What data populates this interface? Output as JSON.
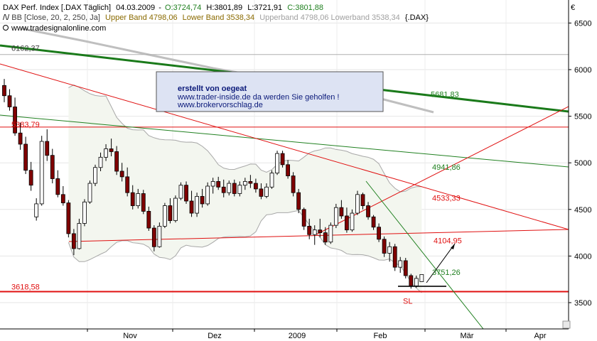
{
  "header": {
    "line1_prefix": "DAX Perf. Index [.DAX  Täglich]",
    "line1_date": "04.03.2009",
    "line1_o": "O:3724,74",
    "line1_h": "H:3801,89",
    "line1_l": "L:3721,91",
    "line1_c": "C:3801,88",
    "line2_bb": "BB [Close, 20, 2, 250, Ja]",
    "line2_upper": "Upper Band 4798,06",
    "line2_lower": "Lower Band 3538,34",
    "line2_faded": "Upperband 4798,06 Lowerband 3538,34",
    "line2_ticker": "{.DAX}",
    "watermark": "www.tradesignalonline.com",
    "currency": "€"
  },
  "annotation_box": {
    "line1": "erstellt von oegeat",
    "line2": "www.trader-inside.de da werden Sie geholfen !",
    "line3": "www.brokervorschlag.de"
  },
  "colors": {
    "up_candle": "#ffffff",
    "down_candle": "#800000",
    "red_line": "#e01010",
    "green_line": "#208020",
    "dark_green_line": "#1a7a1a",
    "band_fill": "#f3f6ef",
    "band_line": "#a8a8a8",
    "box_fill": "#dde3f3"
  },
  "chart_data": {
    "type": "candlestick",
    "ylim": [
      3300,
      6800
    ],
    "y_ticks": [
      3500,
      4000,
      4500,
      5000,
      5500,
      6000,
      6500
    ],
    "x_tick_labels": [
      "Nov",
      "Dez",
      "2009",
      "Feb",
      "Mär",
      "Apr"
    ],
    "level_labels": [
      {
        "text": "6162,37",
        "value": 6162.37,
        "color": "#404040"
      },
      {
        "text": "5383,79",
        "value": 5383.79,
        "color": "#e01010"
      },
      {
        "text": "5681,83",
        "value": 5681.83,
        "color": "#208020"
      },
      {
        "text": "4941,86",
        "value": 4941.86,
        "color": "#208020"
      },
      {
        "text": "4533,33",
        "value": 4533.33,
        "color": "#e01010"
      },
      {
        "text": "4104,95",
        "value": 4104.95,
        "color": "#e01010"
      },
      {
        "text": "3751,26",
        "value": 3751.26,
        "color": "#208020"
      },
      {
        "text": "3618,58",
        "value": 3618.58,
        "color": "#e01010"
      },
      {
        "text": "SL",
        "value": 3580,
        "color": "#e01010"
      }
    ],
    "candles": [
      {
        "x": 0,
        "o": 5830,
        "h": 5900,
        "l": 5650,
        "c": 5720
      },
      {
        "x": 1,
        "o": 5720,
        "h": 5790,
        "l": 5560,
        "c": 5600
      },
      {
        "x": 2,
        "o": 5600,
        "h": 5700,
        "l": 5290,
        "c": 5320
      },
      {
        "x": 3,
        "o": 5320,
        "h": 5430,
        "l": 5140,
        "c": 5200
      },
      {
        "x": 4,
        "o": 5200,
        "h": 5280,
        "l": 4880,
        "c": 4920
      },
      {
        "x": 5,
        "o": 4920,
        "h": 5010,
        "l": 4700,
        "c": 4760
      },
      {
        "x": 6,
        "o": 4420,
        "h": 4620,
        "l": 4380,
        "c": 4560
      },
      {
        "x": 7,
        "o": 4560,
        "h": 5290,
        "l": 4540,
        "c": 5230
      },
      {
        "x": 8,
        "o": 5230,
        "h": 5360,
        "l": 5020,
        "c": 5080
      },
      {
        "x": 9,
        "o": 5080,
        "h": 5150,
        "l": 4780,
        "c": 4830
      },
      {
        "x": 10,
        "o": 4830,
        "h": 4920,
        "l": 4630,
        "c": 4660
      },
      {
        "x": 11,
        "o": 4660,
        "h": 4750,
        "l": 4540,
        "c": 4570
      },
      {
        "x": 12,
        "o": 4570,
        "h": 4600,
        "l": 4200,
        "c": 4240
      },
      {
        "x": 13,
        "o": 4240,
        "h": 4290,
        "l": 4010,
        "c": 4080
      },
      {
        "x": 14,
        "o": 4080,
        "h": 4400,
        "l": 4070,
        "c": 4350
      },
      {
        "x": 15,
        "o": 4350,
        "h": 4610,
        "l": 4320,
        "c": 4580
      },
      {
        "x": 16,
        "o": 4580,
        "h": 4810,
        "l": 4560,
        "c": 4780
      },
      {
        "x": 17,
        "o": 4780,
        "h": 4980,
        "l": 4750,
        "c": 4950
      },
      {
        "x": 18,
        "o": 4950,
        "h": 5110,
        "l": 4910,
        "c": 5060
      },
      {
        "x": 19,
        "o": 5060,
        "h": 5200,
        "l": 5020,
        "c": 5150
      },
      {
        "x": 20,
        "o": 5150,
        "h": 5260,
        "l": 5070,
        "c": 5120
      },
      {
        "x": 21,
        "o": 5120,
        "h": 5180,
        "l": 4870,
        "c": 4910
      },
      {
        "x": 22,
        "o": 4910,
        "h": 5000,
        "l": 4800,
        "c": 4850
      },
      {
        "x": 23,
        "o": 4850,
        "h": 4950,
        "l": 4640,
        "c": 4680
      },
      {
        "x": 24,
        "o": 4680,
        "h": 4760,
        "l": 4500,
        "c": 4540
      },
      {
        "x": 25,
        "o": 4540,
        "h": 4720,
        "l": 4510,
        "c": 4670
      },
      {
        "x": 26,
        "o": 4670,
        "h": 4710,
        "l": 4450,
        "c": 4480
      },
      {
        "x": 27,
        "o": 4480,
        "h": 4530,
        "l": 4270,
        "c": 4300
      },
      {
        "x": 28,
        "o": 4300,
        "h": 4330,
        "l": 4050,
        "c": 4100
      },
      {
        "x": 29,
        "o": 4100,
        "h": 4360,
        "l": 4090,
        "c": 4320
      },
      {
        "x": 30,
        "o": 4320,
        "h": 4570,
        "l": 4300,
        "c": 4540
      },
      {
        "x": 31,
        "o": 4540,
        "h": 4620,
        "l": 4350,
        "c": 4380
      },
      {
        "x": 32,
        "o": 4380,
        "h": 4650,
        "l": 4360,
        "c": 4620
      },
      {
        "x": 33,
        "o": 4620,
        "h": 4790,
        "l": 4600,
        "c": 4760
      },
      {
        "x": 34,
        "o": 4760,
        "h": 4800,
        "l": 4560,
        "c": 4590
      },
      {
        "x": 35,
        "o": 4590,
        "h": 4700,
        "l": 4420,
        "c": 4460
      },
      {
        "x": 36,
        "o": 4460,
        "h": 4680,
        "l": 4420,
        "c": 4640
      },
      {
        "x": 37,
        "o": 4640,
        "h": 4720,
        "l": 4520,
        "c": 4560
      },
      {
        "x": 38,
        "o": 4560,
        "h": 4790,
        "l": 4540,
        "c": 4750
      },
      {
        "x": 39,
        "o": 4750,
        "h": 4840,
        "l": 4670,
        "c": 4800
      },
      {
        "x": 40,
        "o": 4800,
        "h": 4850,
        "l": 4710,
        "c": 4740
      },
      {
        "x": 41,
        "o": 4740,
        "h": 4820,
        "l": 4630,
        "c": 4680
      },
      {
        "x": 42,
        "o": 4680,
        "h": 4810,
        "l": 4650,
        "c": 4780
      },
      {
        "x": 43,
        "o": 4780,
        "h": 4820,
        "l": 4640,
        "c": 4670
      },
      {
        "x": 44,
        "o": 4670,
        "h": 4800,
        "l": 4640,
        "c": 4760
      },
      {
        "x": 45,
        "o": 4760,
        "h": 4840,
        "l": 4710,
        "c": 4800
      },
      {
        "x": 46,
        "o": 4800,
        "h": 4870,
        "l": 4730,
        "c": 4780
      },
      {
        "x": 47,
        "o": 4780,
        "h": 4830,
        "l": 4680,
        "c": 4720
      },
      {
        "x": 48,
        "o": 4720,
        "h": 4780,
        "l": 4610,
        "c": 4640
      },
      {
        "x": 49,
        "o": 4640,
        "h": 4780,
        "l": 4620,
        "c": 4740
      },
      {
        "x": 50,
        "o": 4740,
        "h": 4920,
        "l": 4720,
        "c": 4890
      },
      {
        "x": 51,
        "o": 4890,
        "h": 5130,
        "l": 4870,
        "c": 5100
      },
      {
        "x": 52,
        "o": 5100,
        "h": 5130,
        "l": 4950,
        "c": 4980
      },
      {
        "x": 53,
        "o": 4980,
        "h": 5030,
        "l": 4830,
        "c": 4860
      },
      {
        "x": 54,
        "o": 4860,
        "h": 4900,
        "l": 4640,
        "c": 4680
      },
      {
        "x": 55,
        "o": 4680,
        "h": 4720,
        "l": 4460,
        "c": 4500
      },
      {
        "x": 56,
        "o": 4500,
        "h": 4520,
        "l": 4280,
        "c": 4320
      },
      {
        "x": 57,
        "o": 4320,
        "h": 4400,
        "l": 4180,
        "c": 4230
      },
      {
        "x": 58,
        "o": 4230,
        "h": 4330,
        "l": 4120,
        "c": 4280
      },
      {
        "x": 59,
        "o": 4280,
        "h": 4400,
        "l": 4200,
        "c": 4250
      },
      {
        "x": 60,
        "o": 4250,
        "h": 4310,
        "l": 4120,
        "c": 4150
      },
      {
        "x": 61,
        "o": 4150,
        "h": 4360,
        "l": 4130,
        "c": 4330
      },
      {
        "x": 62,
        "o": 4330,
        "h": 4560,
        "l": 4300,
        "c": 4520
      },
      {
        "x": 63,
        "o": 4520,
        "h": 4600,
        "l": 4400,
        "c": 4430
      },
      {
        "x": 64,
        "o": 4430,
        "h": 4520,
        "l": 4250,
        "c": 4280
      },
      {
        "x": 65,
        "o": 4280,
        "h": 4500,
        "l": 4260,
        "c": 4460
      },
      {
        "x": 66,
        "o": 4460,
        "h": 4700,
        "l": 4440,
        "c": 4660
      },
      {
        "x": 67,
        "o": 4660,
        "h": 4680,
        "l": 4500,
        "c": 4540
      },
      {
        "x": 68,
        "o": 4540,
        "h": 4580,
        "l": 4390,
        "c": 4420
      },
      {
        "x": 69,
        "o": 4420,
        "h": 4440,
        "l": 4280,
        "c": 4310
      },
      {
        "x": 70,
        "o": 4310,
        "h": 4350,
        "l": 4150,
        "c": 4180
      },
      {
        "x": 71,
        "o": 4180,
        "h": 4210,
        "l": 3990,
        "c": 4030
      },
      {
        "x": 72,
        "o": 4030,
        "h": 4150,
        "l": 3940,
        "c": 4100
      },
      {
        "x": 73,
        "o": 4100,
        "h": 4130,
        "l": 3840,
        "c": 3880
      },
      {
        "x": 74,
        "o": 3880,
        "h": 3990,
        "l": 3820,
        "c": 3950
      },
      {
        "x": 75,
        "o": 3950,
        "h": 3980,
        "l": 3760,
        "c": 3790
      },
      {
        "x": 76,
        "o": 3790,
        "h": 3810,
        "l": 3650,
        "c": 3680
      },
      {
        "x": 77,
        "o": 3680,
        "h": 3790,
        "l": 3660,
        "c": 3760
      },
      {
        "x": 78,
        "o": 3724.74,
        "h": 3801.89,
        "l": 3721.91,
        "c": 3801.88
      }
    ]
  }
}
